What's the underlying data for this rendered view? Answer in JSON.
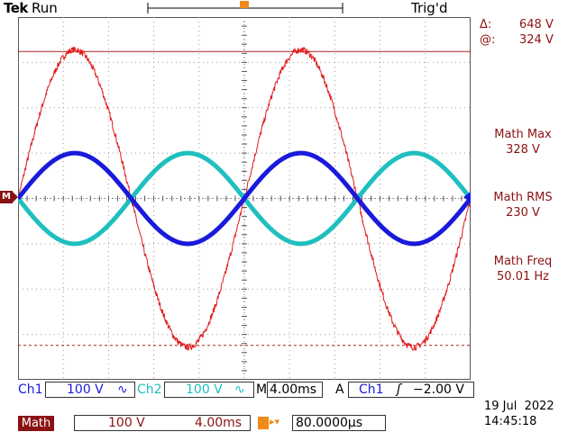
{
  "status": {
    "brand": "Tek",
    "acquisition": "Run",
    "trigger_status": "Trig'd"
  },
  "cursors": {
    "delta_symbol": "Δ:",
    "delta_value": "648 V",
    "at_symbol": "@:",
    "at_value": "324 V"
  },
  "measurements": [
    {
      "label": "Math Max",
      "value": "328 V"
    },
    {
      "label": "Math RMS",
      "value": "230 V"
    },
    {
      "label": "Math Freq",
      "value": "50.01 Hz"
    }
  ],
  "markers": {
    "trigger_marker": "T",
    "math_marker": "M"
  },
  "status_bar": {
    "ch1_label": "Ch1",
    "ch1_scale": "100 V",
    "ch2_label": "Ch2",
    "ch2_scale": "100 V",
    "coupling_glyph": "∿",
    "timebase_prefix": "M",
    "timebase": "4.00ms",
    "trigger_mode": "A",
    "trigger_source": "Ch1",
    "trigger_slope_glyph": "ʃ",
    "trigger_level": "−2.00 V",
    "math_label": "Math",
    "math_scale": "100 V",
    "math_time": "4.00ms",
    "position_glyph": "T▸▾",
    "horizontal_position": "80.0000µs",
    "date": "19 Jul  2022",
    "time": "14:45:18"
  },
  "colors": {
    "ch1": "#1a1adc",
    "ch2": "#1fbfbf",
    "math": "#e01b1b",
    "math_label_bg": "#8b1212",
    "trigger_marker": "#f08a1a"
  },
  "waveform_data": {
    "frequency_hz": 50.01,
    "ch1_peak_v": 100,
    "ch2_peak_v": 100,
    "math_peak_v": 328,
    "cursor_upper_v": 324,
    "cursor_lower_v": -324
  }
}
